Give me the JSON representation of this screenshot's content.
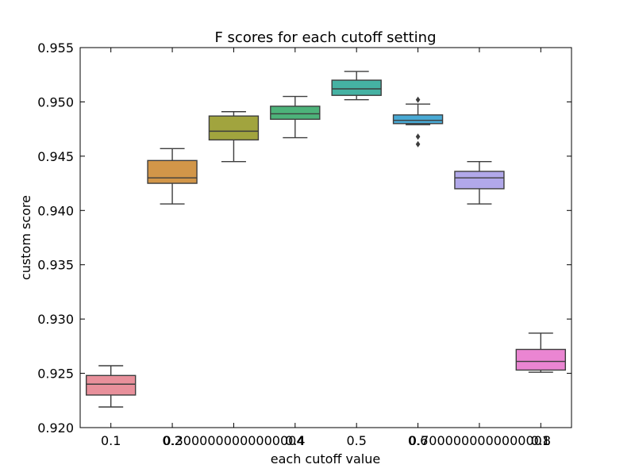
{
  "chart_data": {
    "type": "box",
    "title": "F scores for each cutoff setting",
    "xlabel": "each cutoff value",
    "ylabel": "custom score",
    "ylim": [
      0.92,
      0.955
    ],
    "yticks": [
      "0.920",
      "0.925",
      "0.930",
      "0.935",
      "0.940",
      "0.945",
      "0.950",
      "0.955"
    ],
    "grid": false,
    "categories": [
      "0.1",
      "0.2",
      "0.3000000000000004",
      "0.4",
      "0.5",
      "0.6",
      "0.7000000000000001",
      "0.8"
    ],
    "tick_labels": [
      "0.1",
      "0.2",
      "0.3000000000000004",
      "0.4",
      "0.5",
      "0.6",
      "0.7000000000000001",
      "0.8"
    ],
    "series": [
      {
        "category": "0.1",
        "whisker_low": 0.9219,
        "q1": 0.923,
        "median": 0.924,
        "q3": 0.9248,
        "whisker_high": 0.9257,
        "outliers": [],
        "color": "#e8909b"
      },
      {
        "category": "0.2",
        "whisker_low": 0.9406,
        "q1": 0.9425,
        "median": 0.943,
        "q3": 0.9446,
        "whisker_high": 0.9457,
        "outliers": [],
        "color": "#d29649"
      },
      {
        "category": "0.3000000000000004",
        "whisker_low": 0.9445,
        "q1": 0.9465,
        "median": 0.9473,
        "q3": 0.9487,
        "whisker_high": 0.9491,
        "outliers": [],
        "color": "#a1a43e"
      },
      {
        "category": "0.4",
        "whisker_low": 0.9467,
        "q1": 0.9484,
        "median": 0.9489,
        "q3": 0.9496,
        "whisker_high": 0.9505,
        "outliers": [],
        "color": "#4db37a"
      },
      {
        "category": "0.5",
        "whisker_low": 0.9502,
        "q1": 0.9506,
        "median": 0.9512,
        "q3": 0.952,
        "whisker_high": 0.9528,
        "outliers": [],
        "color": "#45b2a3"
      },
      {
        "category": "0.6",
        "whisker_low": 0.9479,
        "q1": 0.948,
        "median": 0.9483,
        "q3": 0.9488,
        "whisker_high": 0.9498,
        "outliers": [
          0.9502,
          0.9468,
          0.9461
        ],
        "color": "#48a9d4"
      },
      {
        "category": "0.7000000000000001",
        "whisker_low": 0.9406,
        "q1": 0.942,
        "median": 0.943,
        "q3": 0.9436,
        "whisker_high": 0.9445,
        "outliers": [],
        "color": "#b1a8ea"
      },
      {
        "category": "0.8",
        "whisker_low": 0.9251,
        "q1": 0.9253,
        "median": 0.9261,
        "q3": 0.9272,
        "whisker_high": 0.9287,
        "outliers": [],
        "color": "#ea85d2"
      }
    ]
  }
}
